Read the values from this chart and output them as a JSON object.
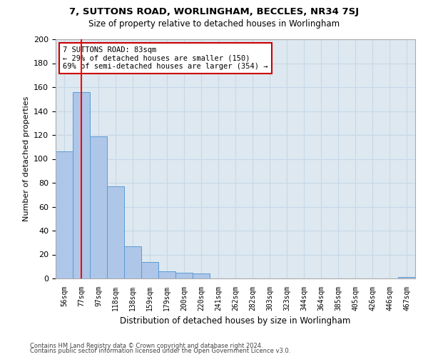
{
  "title1": "7, SUTTONS ROAD, WORLINGHAM, BECCLES, NR34 7SJ",
  "title2": "Size of property relative to detached houses in Worlingham",
  "xlabel": "Distribution of detached houses by size in Worlingham",
  "ylabel": "Number of detached properties",
  "categories": [
    "56sqm",
    "77sqm",
    "97sqm",
    "118sqm",
    "138sqm",
    "159sqm",
    "179sqm",
    "200sqm",
    "220sqm",
    "241sqm",
    "262sqm",
    "282sqm",
    "303sqm",
    "323sqm",
    "344sqm",
    "364sqm",
    "385sqm",
    "405sqm",
    "426sqm",
    "446sqm",
    "467sqm"
  ],
  "values": [
    106,
    156,
    119,
    77,
    27,
    14,
    6,
    5,
    4,
    0,
    0,
    0,
    0,
    0,
    0,
    0,
    0,
    0,
    0,
    0,
    1
  ],
  "bar_color": "#aec6e8",
  "bar_edge_color": "#5b9bd5",
  "red_line_index": 1,
  "annotation_text": "7 SUTTONS ROAD: 83sqm\n← 29% of detached houses are smaller (150)\n69% of semi-detached houses are larger (354) →",
  "annotation_box_color": "#ffffff",
  "annotation_box_edge_color": "#cc0000",
  "ylim": [
    0,
    200
  ],
  "yticks": [
    0,
    20,
    40,
    60,
    80,
    100,
    120,
    140,
    160,
    180,
    200
  ],
  "footer1": "Contains HM Land Registry data © Crown copyright and database right 2024.",
  "footer2": "Contains public sector information licensed under the Open Government Licence v3.0.",
  "grid_color": "#c8d8e8",
  "background_color": "#dde8f0"
}
